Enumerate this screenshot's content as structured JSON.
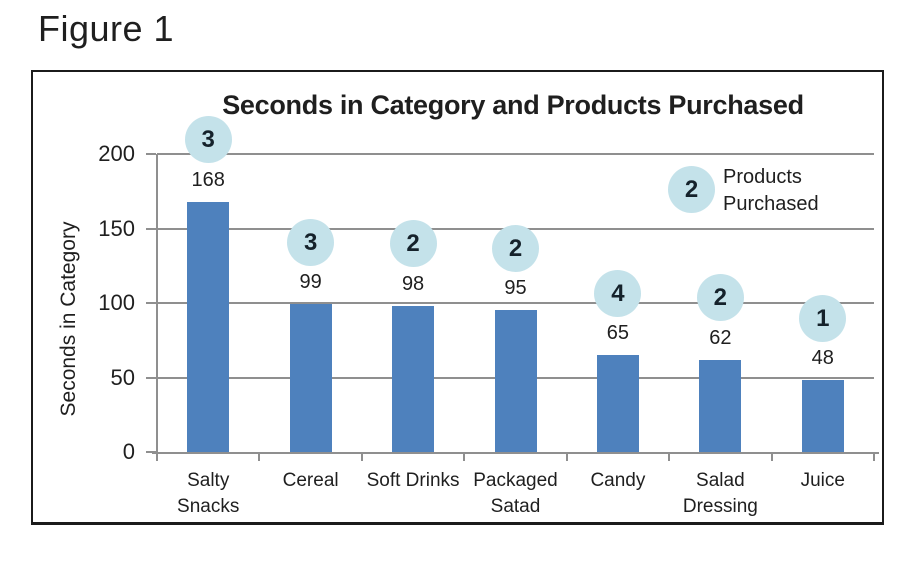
{
  "figure_label": "Figure 1",
  "chart_data": {
    "type": "bar",
    "title": "Seconds in Category and Products Purchased",
    "ylabel": "Seconds in Category",
    "xlabel": "",
    "categories": [
      [
        "Salty",
        "Snacks"
      ],
      [
        "Cereal"
      ],
      [
        "Soft Drinks"
      ],
      [
        "Packaged",
        "Satad"
      ],
      [
        "Candy"
      ],
      [
        "Salad",
        "Dressing"
      ],
      [
        "Juice"
      ]
    ],
    "series": [
      {
        "name": "Seconds in Category",
        "values": [
          168,
          99,
          98,
          95,
          65,
          62,
          48
        ]
      },
      {
        "name": "Products Purchased",
        "values": [
          3,
          3,
          2,
          2,
          4,
          2,
          1
        ]
      }
    ],
    "yticks": [
      0,
      50,
      100,
      150,
      200
    ],
    "ylim": [
      0,
      200
    ],
    "grid": true,
    "legend": {
      "position": "upper-right",
      "bubble_value": "2",
      "label_lines": [
        "Products",
        "Purchased"
      ]
    },
    "colors": {
      "bar": "#4e81bd",
      "bubble": "#c4e2ea",
      "gridline": "#8f8f8f",
      "text": "#1f1f1f"
    }
  }
}
